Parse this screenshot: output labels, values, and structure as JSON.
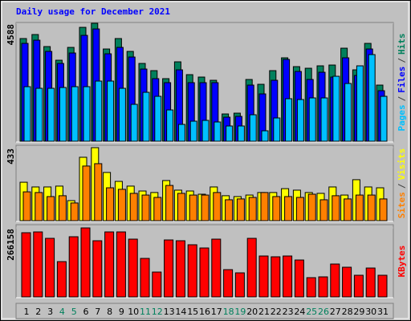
{
  "chart_data": {
    "type": "bar",
    "title": "Daily usage for December 2021",
    "title_color": "#0000ff",
    "legend_separator": "/",
    "separator_color": "#404040",
    "categories": [
      "1",
      "2",
      "3",
      "4",
      "5",
      "6",
      "7",
      "8",
      "9",
      "10",
      "11",
      "12",
      "13",
      "14",
      "15",
      "16",
      "17",
      "18",
      "19",
      "20",
      "21",
      "22",
      "23",
      "24",
      "25",
      "26",
      "27",
      "28",
      "29",
      "30",
      "31"
    ],
    "category_colors": [
      "#000000",
      "#000000",
      "#000000",
      "#00805c",
      "#00805c",
      "#000000",
      "#000000",
      "#000000",
      "#000000",
      "#000000",
      "#00805c",
      "#00805c",
      "#000000",
      "#000000",
      "#000000",
      "#000000",
      "#000000",
      "#00805c",
      "#00805c",
      "#000000",
      "#000000",
      "#000000",
      "#000000",
      "#000000",
      "#00805c",
      "#00805c",
      "#000000",
      "#000000",
      "#000000",
      "#000000",
      "#000000"
    ],
    "panels": [
      {
        "ylim": [
          0,
          4588
        ],
        "yticks": [
          4588
        ],
        "series": [
          {
            "name": "Hits",
            "color": "#00805c",
            "values": [
              3994,
              4150,
              3682,
              3151,
              3650,
              4430,
              4588,
              3588,
              3994,
              3494,
              3026,
              2746,
              2434,
              3089,
              2590,
              2496,
              2371,
              1061,
              1092,
              2402,
              2215,
              2746,
              3245,
              2902,
              2839,
              2933,
              2964,
              3619,
              2777,
              3806,
              2184
            ]
          },
          {
            "name": "Files",
            "color": "#0000ff",
            "values": [
              3806,
              3931,
              3494,
              3026,
              3432,
              4118,
              4368,
              3401,
              3650,
              3276,
              2808,
              2434,
              2278,
              2777,
              2278,
              2278,
              2278,
              936,
              967,
              2184,
              1841,
              2371,
              3182,
              2714,
              2402,
              2683,
              2496,
              3245,
              2558,
              3588,
              1966
            ]
          },
          {
            "name": "Pages",
            "color": "#00c0ff",
            "values": [
              2122,
              2059,
              2059,
              2090,
              2122,
              2122,
              2340,
              2340,
              2059,
              1435,
              1903,
              1747,
              1217,
              655,
              780,
              811,
              749,
              593,
              593,
              1030,
              406,
              905,
              1654,
              1622,
              1685,
              1685,
              2527,
              2246,
              2933,
              3370,
              1747
            ]
          }
        ]
      },
      {
        "ylim": [
          0,
          433
        ],
        "yticks": [
          433
        ],
        "series": [
          {
            "name": "Visits",
            "color": "#ffff00",
            "values": [
              228,
              200,
              200,
              205,
              119,
              376,
              433,
              286,
              233,
              205,
              176,
              167,
              238,
              181,
              176,
              157,
              200,
              148,
              143,
              152,
              167,
              167,
              190,
              181,
              167,
              162,
              200,
              152,
              243,
              200,
              195
            ]
          },
          {
            "name": "Sites",
            "color": "#ff8000",
            "values": [
              171,
              167,
              143,
              148,
              105,
              324,
              338,
              195,
              186,
              162,
              152,
              138,
              209,
              162,
              152,
              152,
              167,
              124,
              129,
              138,
              167,
              143,
              143,
              138,
              157,
              124,
              148,
              129,
              152,
              152,
              129
            ]
          }
        ]
      },
      {
        "ylim": [
          0,
          266158
        ],
        "yticks": [
          266158
        ],
        "series": [
          {
            "name": "KBytes",
            "color": "#ff0000",
            "values": [
              247600,
              250695,
              225935,
              136180,
              232125,
              266158,
              216650,
              250695,
              250695,
              222840,
              148560,
              95945,
              219745,
              216650,
              201175,
              188795,
              222840,
              105230,
              92850,
              225935,
              157845,
              154750,
              157845,
              142370,
              74280,
              77375,
              126895,
              114515,
              83565,
              111420,
              83565
            ]
          }
        ]
      }
    ]
  }
}
